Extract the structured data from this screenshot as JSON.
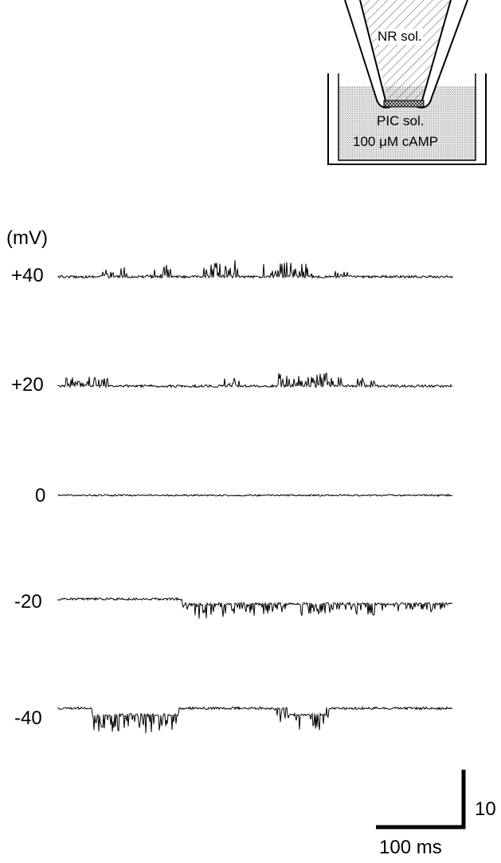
{
  "inset": {
    "pipette_solution": "NR sol.",
    "bath_solution_line1": "PIC sol.",
    "bath_solution_line2": "100 μM cAMP"
  },
  "traces": {
    "unit_label": "(mV)",
    "rows": [
      {
        "voltage": "+40"
      },
      {
        "voltage": "+20"
      },
      {
        "voltage": "0"
      },
      {
        "voltage": "-20"
      },
      {
        "voltage": "-40"
      }
    ]
  },
  "scale_bar": {
    "vertical_label": "10",
    "horizontal_label": "100 ms"
  }
}
